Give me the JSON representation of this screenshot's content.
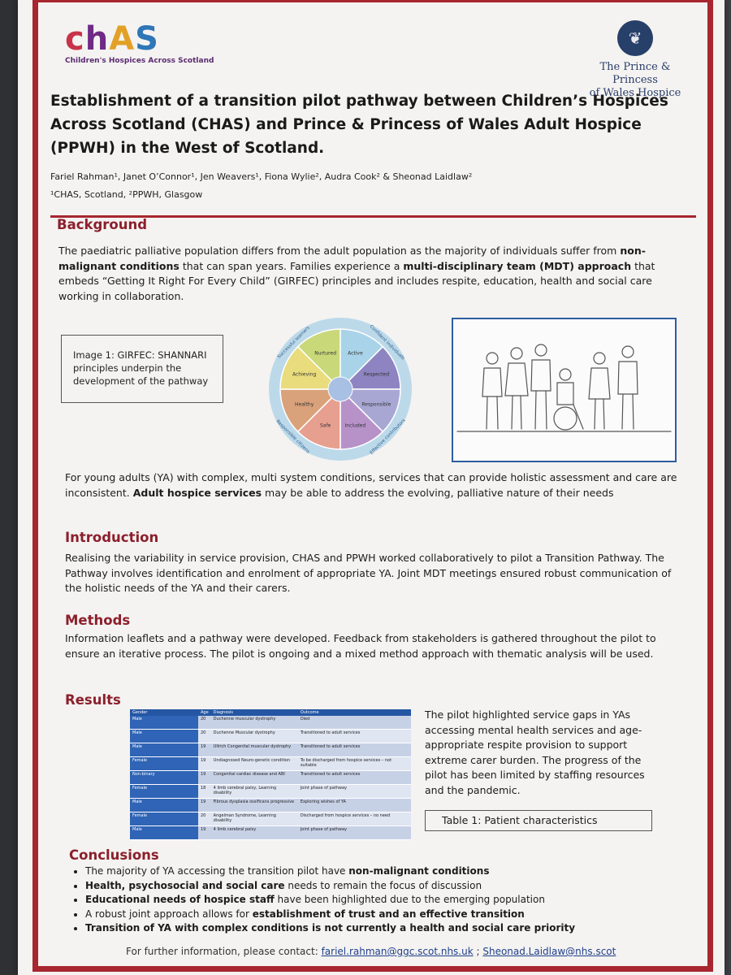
{
  "logos": {
    "chas_letters": [
      "c",
      "h",
      "A",
      "S"
    ],
    "chas_subtitle": "Children's Hospices Across Scotland",
    "ppw_line1": "The Prince & Princess",
    "ppw_line2": "of Wales Hospice",
    "crest_icon": "feathers-crest-icon"
  },
  "title": "Establishment of a transition pilot pathway between Children’s Hospices Across Scotland (CHAS) and Prince & Princess of Wales Adult Hospice (PPWH) in the West of Scotland.",
  "authors": "Fariel Rahman¹, Janet O’Connor¹, Jen Weavers¹, Fiona Wylie², Audra Cook² & Sheonad Laidlaw²",
  "affiliations": "¹CHAS, Scotland, ²PPWH, Glasgow",
  "background": {
    "heading": "Background",
    "p1_a": "The paediatric palliative population differs from the adult population as the majority of individuals suffer from ",
    "p1_b": "non-malignant conditions",
    "p1_c": " that can span years. Families experience a ",
    "p1_d": "multi-disciplinary team (MDT) approach",
    "p1_e": " that embeds “Getting It Right For Every Child” (GIRFEC) principles and includes respite, education, health and social care working in collaboration.",
    "image_caption": "Image 1: GIRFEC: SHANNARI principles underpin the development of the pathway",
    "p2_a": "For young adults (YA) with complex, multi system conditions, services that can provide holistic assessment and care are inconsistent. ",
    "p2_b": "Adult hospice services",
    "p2_c": " may be able to address the evolving, palliative nature of their needs"
  },
  "wheel": {
    "segments": [
      "Nurtured",
      "Active",
      "Respected",
      "Responsible",
      "Included",
      "Safe",
      "Healthy",
      "Achieving"
    ],
    "colors": [
      "#c9d97a",
      "#a9d3e8",
      "#8d84c1",
      "#a8a7d4",
      "#b792c9",
      "#e7a08f",
      "#d9a27b",
      "#e9dc7c"
    ],
    "outer_labels": [
      "Successful learners",
      "Confident individuals",
      "Effective contributors",
      "Responsible citizens"
    ]
  },
  "introduction": {
    "heading": "Introduction",
    "text": "Realising the variability in service provision, CHAS and PPWH worked collaboratively to pilot a Transition Pathway. The Pathway involves identification and enrolment of appropriate YA. Joint MDT meetings ensured robust communication of the holistic needs of the YA and their carers."
  },
  "methods": {
    "heading": "Methods",
    "text": "Information leaflets and a pathway were developed. Feedback from stakeholders is gathered throughout the pilot to ensure an iterative process. The pilot is ongoing and a mixed method approach with thematic analysis will be used."
  },
  "results": {
    "heading": "Results",
    "table_headers": [
      "Gender",
      "Age",
      "Diagnosis",
      "Outcome"
    ],
    "table_rows": [
      [
        "Male",
        "20",
        "Duchenne muscular dystrophy",
        "Died"
      ],
      [
        "Male",
        "20",
        "Duchenne Muscular dystrophy",
        "Transitioned to adult services"
      ],
      [
        "Male",
        "19",
        "Ullrich Congenital muscular dystrophy",
        "Transitioned to adult services"
      ],
      [
        "Female",
        "19",
        "Undiagnosed Neuro-genetic condition",
        "To be discharged from hospice services – not suitable"
      ],
      [
        "Non-binary",
        "19",
        "Congenital cardiac disease and ABI",
        "Transitioned to adult services"
      ],
      [
        "Female",
        "18",
        "4 limb cerebral palsy, Learning disability",
        "Joint phase of pathway"
      ],
      [
        "Male",
        "19",
        "Fibrous dysplasia ossificans progressive",
        "Exploring wishes of YA"
      ],
      [
        "Female",
        "20",
        "Angelman Syndrome, Learning disability",
        "Discharged from hospice services – no need"
      ],
      [
        "Male",
        "19",
        "4 limb cerebral palsy",
        "Joint phase of pathway"
      ]
    ],
    "summary": "The pilot highlighted service gaps in YAs accessing mental health services and age-appropriate respite provision to support extreme carer burden. The progress of the pilot has been limited by staffing resources and the pandemic.",
    "table_caption": "Table 1: Patient characteristics"
  },
  "conclusions": {
    "heading": "Conclusions",
    "items": [
      {
        "a": "The majority of YA accessing the transition pilot have ",
        "b": "non-malignant conditions",
        "c": ""
      },
      {
        "a": "",
        "b": "Health, psychosocial and social care",
        "c": " needs to remain the focus of discussion"
      },
      {
        "a": "",
        "b": "Educational needs of hospice staff",
        "c": " have been highlighted due to the emerging population"
      },
      {
        "a": "A robust joint approach allows for ",
        "b": "establishment of trust and an effective transition",
        "c": ""
      },
      {
        "a": "",
        "b": "Transition of YA with complex conditions is not currently a health and social care priority",
        "c": ""
      }
    ]
  },
  "contact": {
    "prefix": "For further information, please contact: ",
    "email1": "fariel.rahman@ggc.scot.nhs.uk",
    "sep": " ; ",
    "email2": "Sheonad.Laidlaw@nhs.scot"
  }
}
